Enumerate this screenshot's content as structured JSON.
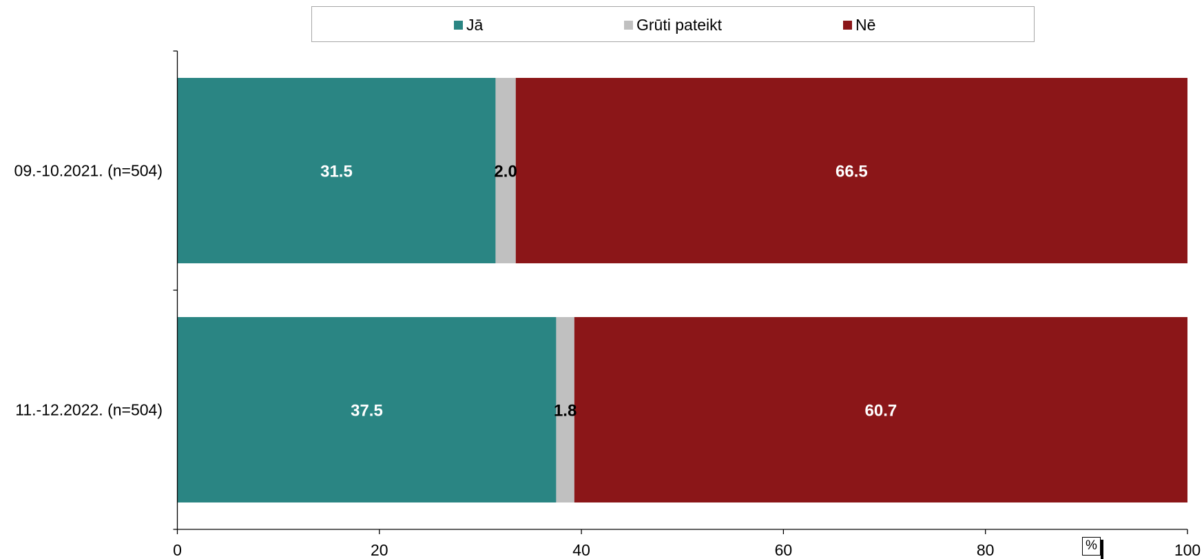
{
  "chart_data": {
    "type": "bar",
    "orientation": "horizontal",
    "stacked": true,
    "categories": [
      "09.-10.2021. (n=504)",
      "11.-12.2022. (n=504)"
    ],
    "series": [
      {
        "name": "Jā",
        "values": [
          31.5,
          37.5
        ],
        "color": "#2a8583",
        "label_color": "#ffffff"
      },
      {
        "name": "Grūti pateikt",
        "values": [
          2.0,
          1.8
        ],
        "color": "#c0c0c0",
        "label_color": "#000000"
      },
      {
        "name": "Nē",
        "values": [
          66.5,
          60.7
        ],
        "color": "#8b1618",
        "label_color": "#ffffff"
      }
    ],
    "xlim": [
      0,
      100
    ],
    "xticks": [
      "0",
      "20",
      "40",
      "60",
      "80",
      "100"
    ],
    "unit": "%",
    "legend_position": "top",
    "grid": false
  }
}
